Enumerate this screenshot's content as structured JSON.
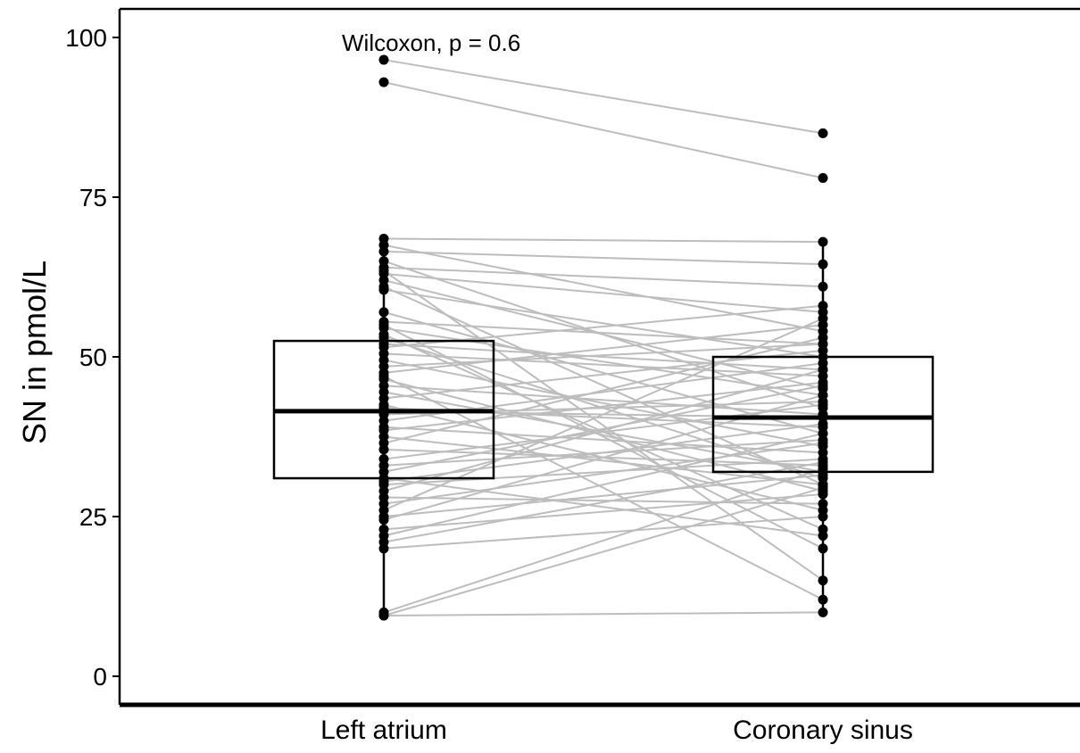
{
  "chart_data": {
    "type": "box-paired",
    "ylabel": "SN in pmol/L",
    "xlabel": "",
    "ylim": [
      0,
      100
    ],
    "yticks": [
      0,
      25,
      50,
      75,
      100
    ],
    "categories": [
      "Left atrium",
      "Coronary sinus"
    ],
    "annotation": "Wilcoxon, p = 0.6",
    "colors": {
      "box": "#000000",
      "point": "#000000",
      "paired_line": "#bdbdbd"
    },
    "boxes": [
      {
        "group": "Left atrium",
        "min": 9.5,
        "q1": 31,
        "median": 41.5,
        "q3": 52.5,
        "max": 68.5,
        "outliers": [
          96.5,
          93
        ]
      },
      {
        "group": "Coronary sinus",
        "min": 10,
        "q1": 32,
        "median": 40.5,
        "q3": 50,
        "max": 68,
        "outliers": [
          85,
          78
        ]
      }
    ],
    "pairs": [
      [
        96.5,
        85
      ],
      [
        93,
        78
      ],
      [
        68.5,
        68
      ],
      [
        67.5,
        54
      ],
      [
        66.5,
        64.5
      ],
      [
        65,
        42
      ],
      [
        64,
        61
      ],
      [
        63,
        57
      ],
      [
        62,
        45
      ],
      [
        60.5,
        50
      ],
      [
        57,
        38
      ],
      [
        55.5,
        52
      ],
      [
        54.5,
        44
      ],
      [
        53,
        31
      ],
      [
        52,
        48
      ],
      [
        51.5,
        58
      ],
      [
        50.5,
        47
      ],
      [
        49.5,
        36
      ],
      [
        48.5,
        52
      ],
      [
        47.5,
        55
      ],
      [
        46.5,
        29
      ],
      [
        45.5,
        41
      ],
      [
        44.5,
        32
      ],
      [
        43.5,
        51
      ],
      [
        42.5,
        26
      ],
      [
        42,
        39
      ],
      [
        41.5,
        40.5
      ],
      [
        41,
        43
      ],
      [
        40,
        49
      ],
      [
        39,
        35
      ],
      [
        38.5,
        46
      ],
      [
        37.5,
        30
      ],
      [
        36.5,
        53
      ],
      [
        35.5,
        33
      ],
      [
        34,
        42.5
      ],
      [
        33,
        37
      ],
      [
        32,
        45.5
      ],
      [
        31,
        22
      ],
      [
        30.5,
        39.5
      ],
      [
        30,
        34
      ],
      [
        29,
        48
      ],
      [
        28,
        27
      ],
      [
        27,
        36.5
      ],
      [
        26,
        56
      ],
      [
        25,
        31.5
      ],
      [
        24.5,
        44
      ],
      [
        23,
        28.5
      ],
      [
        22,
        38
      ],
      [
        21,
        33.5
      ],
      [
        20,
        25
      ],
      [
        10,
        32.5
      ],
      [
        9.5,
        29.5
      ],
      [
        9.5,
        10
      ],
      [
        63.5,
        15
      ],
      [
        55,
        20
      ],
      [
        47,
        12
      ],
      [
        53.5,
        23
      ],
      [
        61,
        30
      ]
    ]
  }
}
